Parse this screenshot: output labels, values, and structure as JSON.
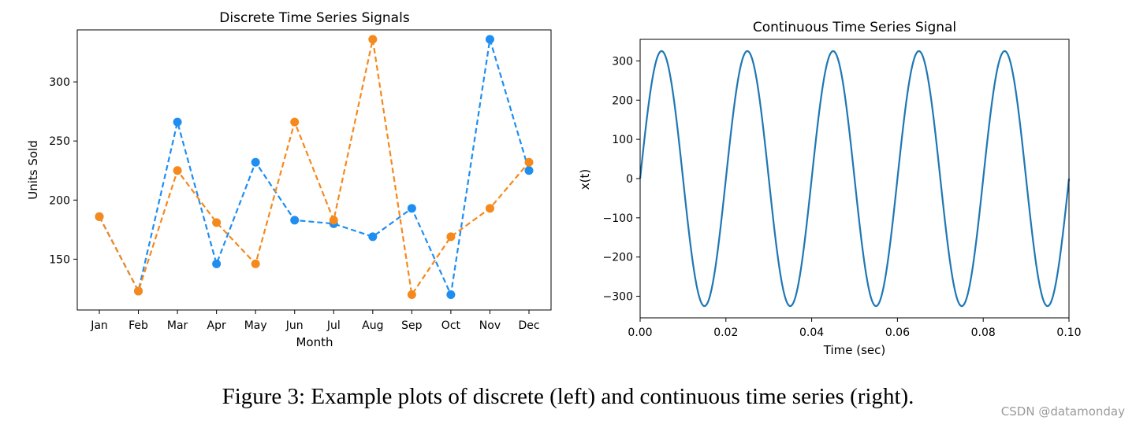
{
  "chart_data": [
    {
      "type": "line",
      "title": "Discrete Time Series Signals",
      "xlabel": "Month",
      "ylabel": "Units Sold",
      "categories": [
        "Jan",
        "Feb",
        "Mar",
        "Apr",
        "May",
        "Jun",
        "Jul",
        "Aug",
        "Sep",
        "Oct",
        "Nov",
        "Dec"
      ],
      "ylim": [
        107,
        344
      ],
      "yticks": [
        150,
        200,
        250,
        300
      ],
      "grid": false,
      "series": [
        {
          "name": "blue",
          "color": "#1f8ef1",
          "line_style": "dashed",
          "marker": "circle",
          "values": [
            186,
            123,
            266,
            146,
            232,
            183,
            180,
            169,
            193,
            120,
            336,
            225
          ]
        },
        {
          "name": "orange",
          "color": "#f5891b",
          "line_style": "dashed",
          "marker": "circle",
          "values": [
            186,
            123,
            225,
            181,
            146,
            266,
            183,
            336,
            120,
            169,
            193,
            232
          ]
        }
      ]
    },
    {
      "type": "line",
      "title": "Continuous Time Series Signal",
      "xlabel": "Time (sec)",
      "ylabel": "x(t)",
      "xlim": [
        0.0,
        0.1
      ],
      "ylim": [
        -355,
        355
      ],
      "xticks": [
        0.0,
        0.02,
        0.04,
        0.06,
        0.08,
        0.1
      ],
      "xtick_labels": [
        "0.00",
        "0.02",
        "0.04",
        "0.06",
        "0.08",
        "0.10"
      ],
      "yticks": [
        -300,
        -200,
        -100,
        0,
        100,
        200,
        300
      ],
      "ytick_labels": [
        "−300",
        "−200",
        "−100",
        "0",
        "100",
        "200",
        "300"
      ],
      "grid": false,
      "series": [
        {
          "name": "x(t)",
          "color": "#1f77b4",
          "function": "amplitude * sin(2*pi*frequency*t)",
          "amplitude": 325,
          "frequency_hz": 50
        }
      ]
    }
  ],
  "caption": "Figure 3: Example plots of discrete (left) and continuous time series (right).",
  "watermark": "CSDN @datamonday"
}
